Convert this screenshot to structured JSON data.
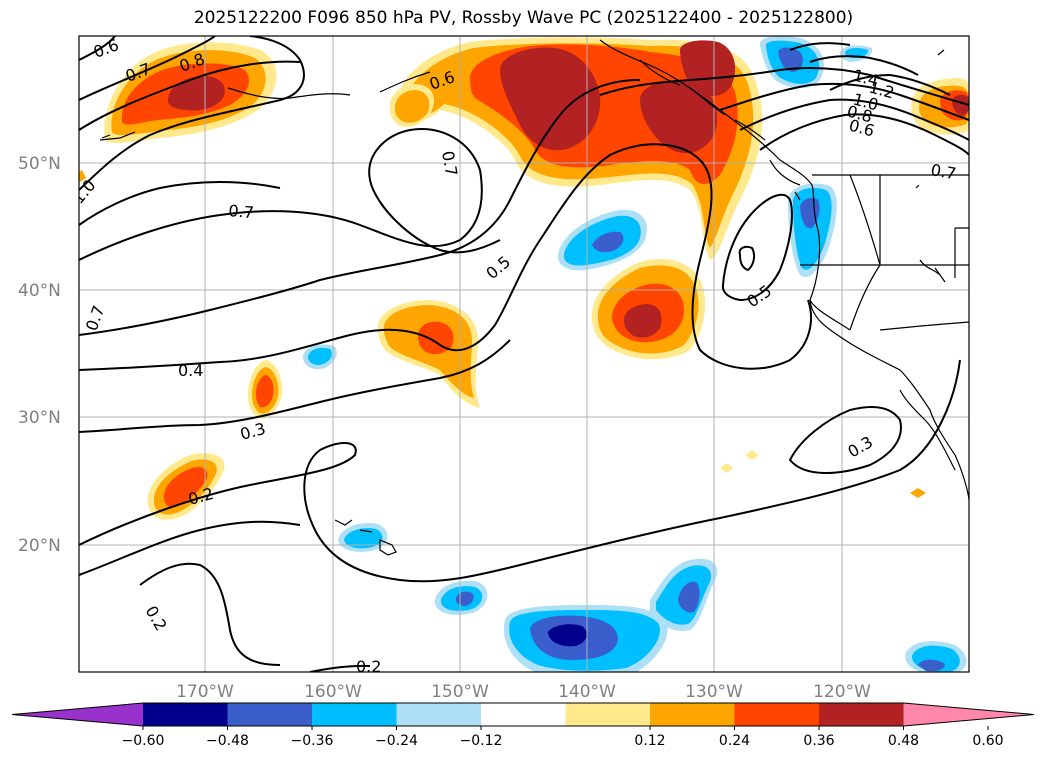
{
  "title": "2025122200 F096 850 hPa PV, Rossby Wave PC (2025122400 - 2025122800)",
  "map": {
    "lat_labels": [
      "50°N",
      "40°N",
      "30°N",
      "20°N"
    ],
    "lon_labels": [
      "170°W",
      "160°W",
      "150°W",
      "140°W",
      "130°W",
      "120°W"
    ],
    "contour_labels": [
      "0.6",
      "0.7",
      "0.8",
      "0.6",
      "0.7",
      "1.0",
      "0.7",
      "0.5",
      "0.7",
      "0.4",
      "0.3",
      "0.2",
      "0.2",
      "0.2",
      "0.5",
      "0.3",
      "1.4",
      "1.2",
      "1.0",
      "0.8",
      "0.6",
      "0.7"
    ],
    "gridlines": true
  },
  "colorbar": {
    "tick_labels": [
      "−0.60",
      "−0.48",
      "−0.36",
      "−0.24",
      "−0.12",
      "0.12",
      "0.24",
      "0.36",
      "0.48",
      "0.60"
    ],
    "colors": [
      "#9932CC",
      "#00008B",
      "#3A5FCD",
      "#00BFFF",
      "#ADDFF7",
      "#FFFFFF",
      "#FFE98C",
      "#FFA500",
      "#FF4500",
      "#B22222",
      "#FF88AA"
    ],
    "extend": "both"
  }
}
